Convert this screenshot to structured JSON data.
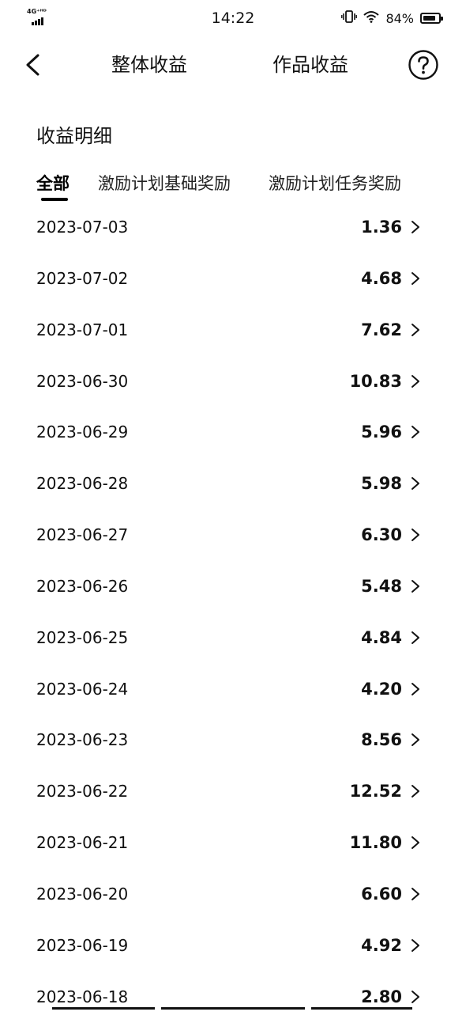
{
  "status_bar": {
    "network": "4G⁺ᴴᴰ",
    "time": "14:22",
    "battery": "84%",
    "battery_level": 0.84
  },
  "header": {
    "tab_overall": "整体收益",
    "tab_works": "作品收益"
  },
  "section": {
    "title": "收益明细"
  },
  "filter_tabs": [
    {
      "label": "全部",
      "active": true
    },
    {
      "label": "激励计划基础奖励",
      "active": false
    },
    {
      "label": "激励计划任务奖励",
      "active": false
    }
  ],
  "earnings": [
    {
      "date": "2023-07-03",
      "amount": "1.36"
    },
    {
      "date": "2023-07-02",
      "amount": "4.68"
    },
    {
      "date": "2023-07-01",
      "amount": "7.62"
    },
    {
      "date": "2023-06-30",
      "amount": "10.83"
    },
    {
      "date": "2023-06-29",
      "amount": "5.96"
    },
    {
      "date": "2023-06-28",
      "amount": "5.98"
    },
    {
      "date": "2023-06-27",
      "amount": "6.30"
    },
    {
      "date": "2023-06-26",
      "amount": "5.48"
    },
    {
      "date": "2023-06-25",
      "amount": "4.84"
    },
    {
      "date": "2023-06-24",
      "amount": "4.20"
    },
    {
      "date": "2023-06-23",
      "amount": "8.56"
    },
    {
      "date": "2023-06-22",
      "amount": "12.52"
    },
    {
      "date": "2023-06-21",
      "amount": "11.80"
    },
    {
      "date": "2023-06-20",
      "amount": "6.60"
    },
    {
      "date": "2023-06-19",
      "amount": "4.92"
    },
    {
      "date": "2023-06-18",
      "amount": "2.80"
    }
  ],
  "icons": {
    "back": "chevron-left-icon",
    "help": "question-circle-icon",
    "row": "chevron-right-icon",
    "vibrate": "vibrate-icon",
    "wifi": "wifi-icon",
    "battery": "battery-icon",
    "signal": "signal-icon"
  }
}
